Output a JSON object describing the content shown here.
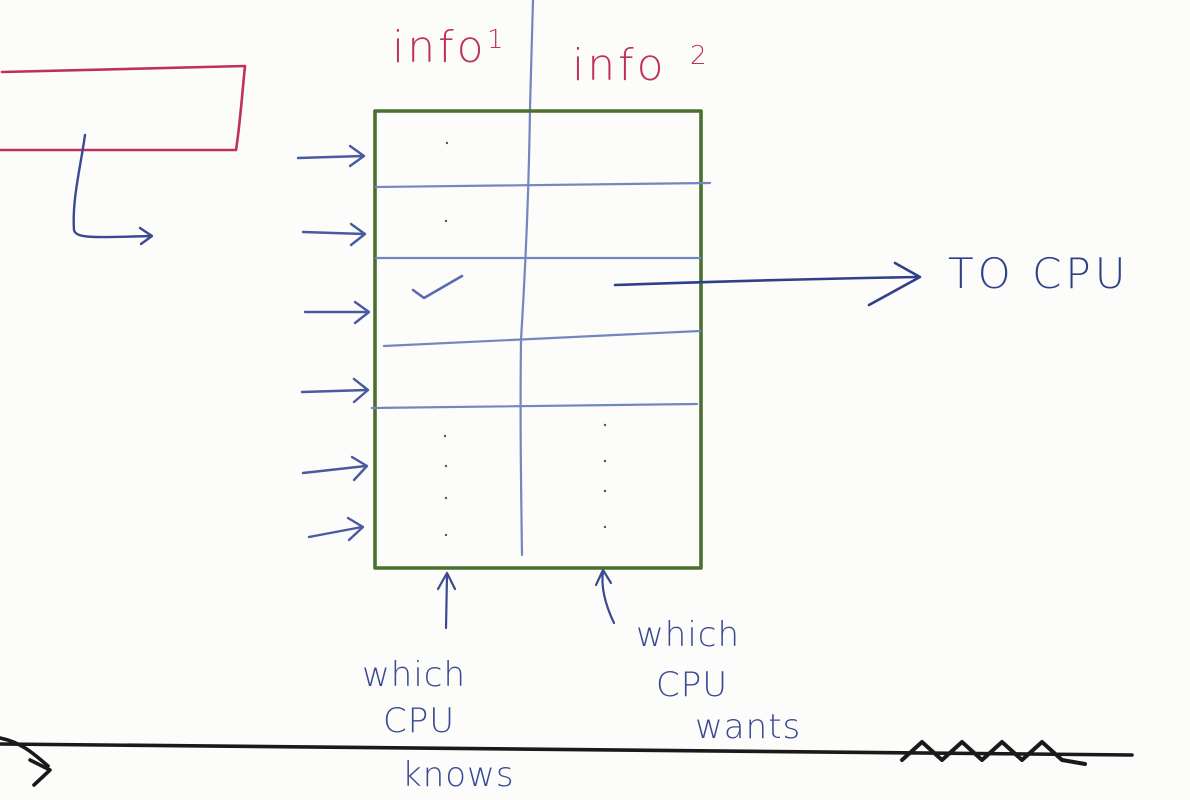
{
  "colors": {
    "background": "#fcfcfb",
    "table_border": "#4a7030",
    "grid_lines": "#7486c0",
    "red_ink": "#c0305a",
    "blue_ink": "#2f3f8a",
    "black_ink": "#1a1a1a"
  },
  "diagram": {
    "column_header_1": {
      "base": "info",
      "sup": "1"
    },
    "column_header_2": {
      "base": "info",
      "sup": "2"
    },
    "output_label": "TO CPU",
    "bottom_note_left": [
      "which",
      "CPU",
      "knows"
    ],
    "bottom_note_right": [
      "which",
      "CPU",
      "wants"
    ]
  }
}
